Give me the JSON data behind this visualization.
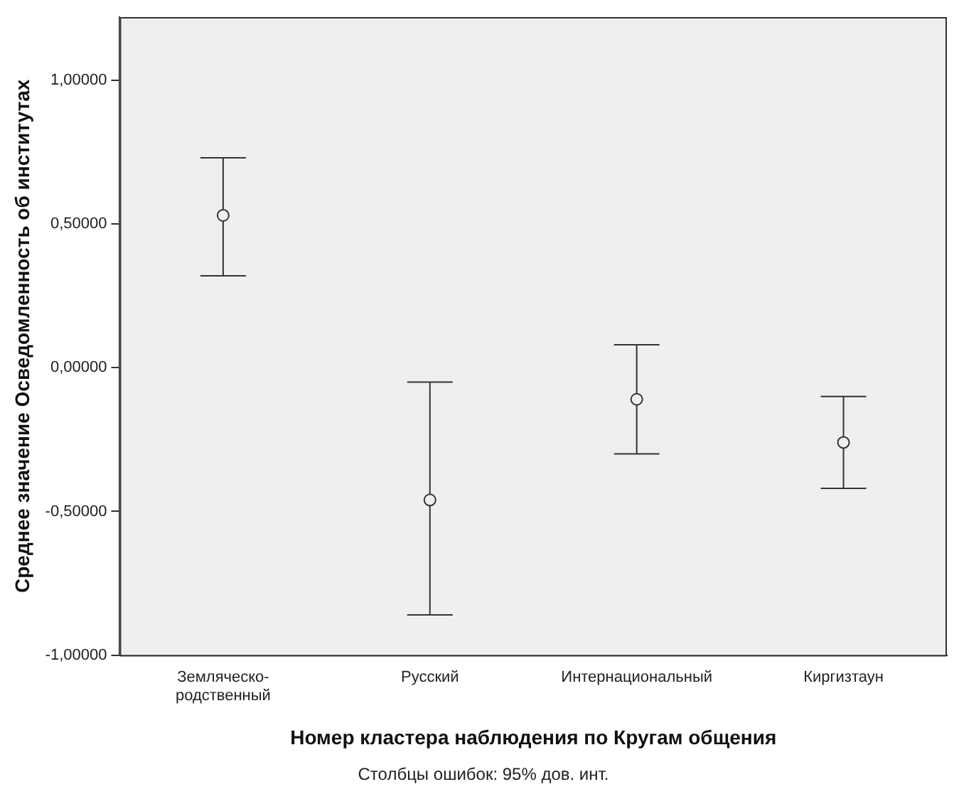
{
  "chart_data": {
    "type": "scatter",
    "xlabel": "Номер кластера наблюдения по Кругам общения",
    "ylabel": "Среднее значение Осведомленность об институтах",
    "categories": [
      "Земляческо-родственный",
      "Русский",
      "Интернациональный",
      "Киргизтаун"
    ],
    "series": [
      {
        "color": "#333333",
        "values": [
          0.53,
          -0.46,
          -0.11,
          -0.26
        ],
        "errors": [
          [
            0.32,
            0.73
          ],
          [
            -0.86,
            -0.05
          ],
          [
            -0.3,
            0.08
          ],
          [
            -0.42,
            -0.1
          ]
        ]
      }
    ],
    "marker": "circle",
    "grid": false,
    "legend": false,
    "ylim": [
      -1,
      1.22
    ],
    "yticks": [
      {
        "value": -1,
        "label": "-1,00000"
      },
      {
        "value": -0.5,
        "label": "-0,50000"
      },
      {
        "value": 0,
        "label": "0,00000"
      },
      {
        "value": 0.5,
        "label": "0,50000"
      },
      {
        "value": 1,
        "label": "1,00000"
      }
    ],
    "annotations": [
      "Столбцы ошибок: 95% дов. инт."
    ]
  }
}
